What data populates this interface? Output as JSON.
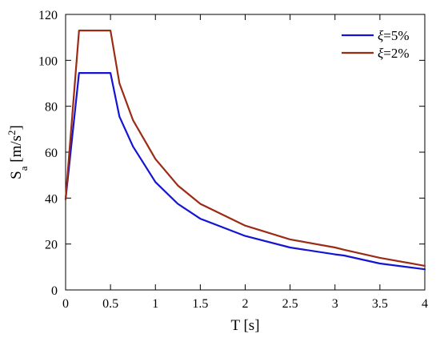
{
  "chart_data": {
    "type": "line",
    "title": "",
    "xlabel": "T [s]",
    "ylabel": {
      "base": "S",
      "sub": "a",
      "unit_pre": " [m/s",
      "unit_sup": "2",
      "unit_post": "]"
    },
    "xlim": [
      0,
      4
    ],
    "ylim": [
      0,
      120
    ],
    "xticks": [
      0,
      0.5,
      1,
      1.5,
      2,
      2.5,
      3,
      3.5,
      4
    ],
    "xtick_labels": [
      "0",
      "0.5",
      "1",
      "1.5",
      "2",
      "2.5",
      "3",
      "3.5",
      "4"
    ],
    "yticks": [
      0,
      20,
      40,
      60,
      80,
      100,
      120
    ],
    "ytick_labels": [
      "0",
      "20",
      "40",
      "60",
      "80",
      "100",
      "120"
    ],
    "grid": false,
    "legend_position": "top-right",
    "series": [
      {
        "name_symbol": "ξ",
        "name_value": "=5%",
        "color": "#1414d2",
        "x": [
          0,
          0.15,
          0.5,
          0.6,
          0.75,
          1.0,
          1.25,
          1.5,
          2.0,
          2.5,
          3.0,
          3.1,
          3.5,
          4.0
        ],
        "y": [
          39.5,
          94.5,
          94.5,
          75.5,
          62.5,
          47,
          37.5,
          31,
          23.5,
          18.5,
          15.5,
          15,
          11.5,
          9
        ]
      },
      {
        "name_symbol": "ξ",
        "name_value": "=2%",
        "color": "#9c2b16",
        "x": [
          0,
          0.15,
          0.5,
          0.6,
          0.75,
          1.0,
          1.25,
          1.5,
          2.0,
          2.5,
          3.0,
          3.1,
          3.5,
          4.0
        ],
        "y": [
          39.5,
          113,
          113,
          90,
          74,
          57,
          45.5,
          37.5,
          28,
          22,
          18.5,
          17.5,
          14,
          10.5
        ]
      }
    ]
  }
}
